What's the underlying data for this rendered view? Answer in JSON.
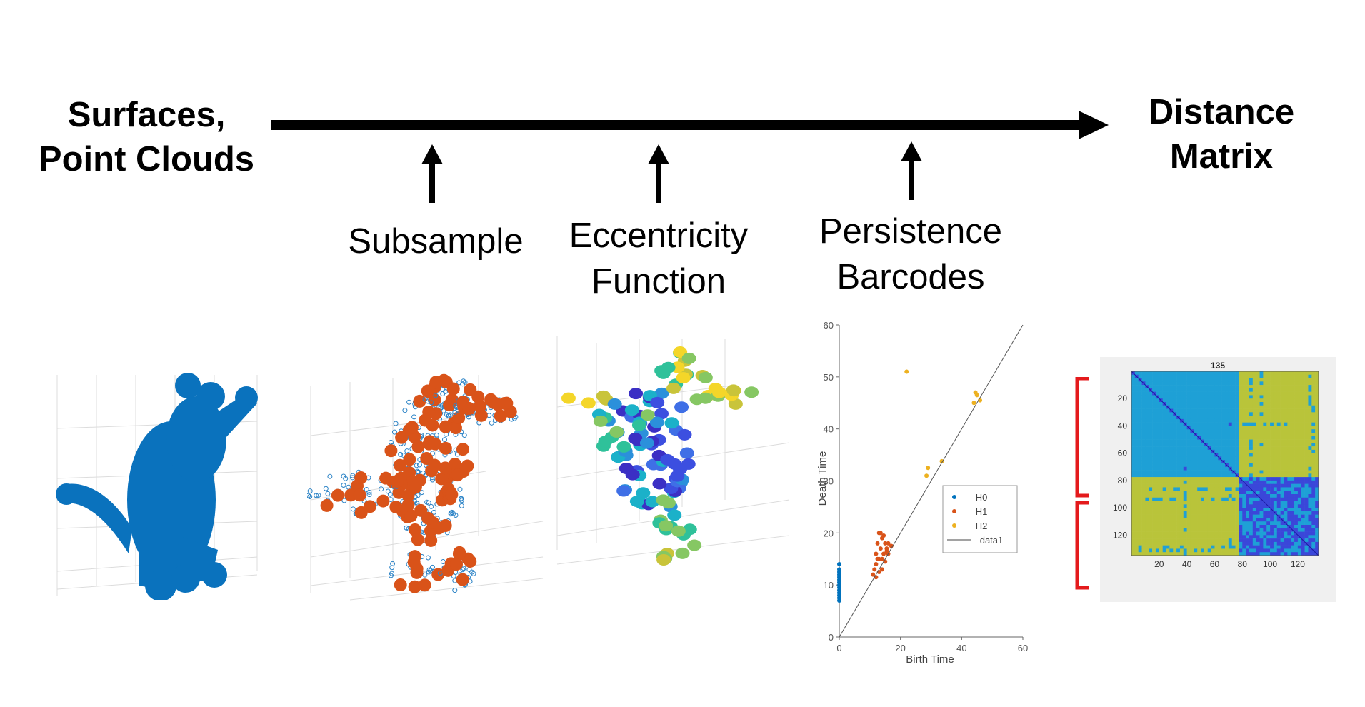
{
  "colors": {
    "arrow": "#000000",
    "cat_fill": "#0a72bd",
    "subsample_point": "#d95319",
    "dense_point": "#2b83c6",
    "h0": "#0072bd",
    "h1": "#d95319",
    "h2": "#edb120",
    "bracket": "#e41a1c"
  },
  "pipeline": {
    "input_label": "Surfaces,\nPoint Clouds",
    "output_label": "Distance\nMatrix",
    "stages": [
      {
        "label": "Subsample"
      },
      {
        "label": "Eccentricity\nFunction"
      },
      {
        "label": "Persistence\nBarcodes"
      }
    ]
  },
  "images": [
    {
      "name": "cat-surface",
      "icon": "cat-silhouette"
    },
    {
      "name": "subsampled-point-cloud",
      "icon": "cat-point-cloud"
    },
    {
      "name": "eccentricity-colored-points",
      "icon": "cat-colored-points"
    }
  ],
  "chart_data": [
    {
      "type": "scatter",
      "title": "",
      "xlabel": "Birth Time",
      "ylabel": "Death Time",
      "xlim": [
        0,
        60
      ],
      "ylim": [
        0,
        60
      ],
      "xticks": [
        "0",
        "20",
        "40",
        "60"
      ],
      "yticks": [
        "0",
        "10",
        "20",
        "30",
        "40",
        "50",
        "60"
      ],
      "legend": {
        "placement": "right-middle",
        "entries": [
          "H0",
          "H1",
          "H2",
          "data1"
        ]
      },
      "series": [
        {
          "name": "H0",
          "points": [
            [
              0,
              7
            ],
            [
              0,
              7.5
            ],
            [
              0,
              8
            ],
            [
              0,
              8.5
            ],
            [
              0,
              9
            ],
            [
              0,
              9.5
            ],
            [
              0,
              10
            ],
            [
              0,
              10.5
            ],
            [
              0,
              11
            ],
            [
              0,
              11.5
            ],
            [
              0,
              12
            ],
            [
              0,
              12.5
            ],
            [
              0,
              13
            ],
            [
              0,
              14
            ]
          ]
        },
        {
          "name": "H1",
          "points": [
            [
              11,
              12
            ],
            [
              11.5,
              13
            ],
            [
              12,
              14
            ],
            [
              12,
              16
            ],
            [
              12.5,
              18
            ],
            [
              13,
              20
            ],
            [
              13,
              15
            ],
            [
              13.5,
              17
            ],
            [
              14,
              19
            ],
            [
              14,
              13
            ],
            [
              14.5,
              16
            ],
            [
              15,
              18
            ],
            [
              15,
              14.5
            ],
            [
              15.5,
              17
            ],
            [
              16,
              16
            ],
            [
              16,
              18
            ],
            [
              12,
              11.5
            ],
            [
              13,
              12.5
            ],
            [
              14,
              15
            ],
            [
              15.5,
              16.5
            ],
            [
              17,
              17.5
            ],
            [
              12.5,
              15
            ],
            [
              13.5,
              20
            ],
            [
              14.5,
              19.5
            ]
          ]
        },
        {
          "name": "H2",
          "points": [
            [
              22,
              51
            ],
            [
              28.5,
              31
            ],
            [
              29,
              32.5
            ],
            [
              33.5,
              33.8
            ],
            [
              44,
              45
            ],
            [
              44.5,
              47
            ],
            [
              45,
              46.5
            ],
            [
              46,
              45.5
            ]
          ]
        },
        {
          "name": "data1",
          "line": [
            [
              0,
              0
            ],
            [
              60,
              60
            ]
          ]
        }
      ]
    },
    {
      "type": "heatmap",
      "title": "135",
      "xticks": [
        "20",
        "40",
        "60",
        "80",
        "100",
        "120"
      ],
      "yticks": [
        "20",
        "40",
        "60",
        "80",
        "100",
        "120"
      ],
      "size": 135,
      "block_split": 77,
      "colors": {
        "low": "#3a47d9",
        "mid": "#1ea0d6",
        "high": "#b9c43a"
      }
    }
  ]
}
